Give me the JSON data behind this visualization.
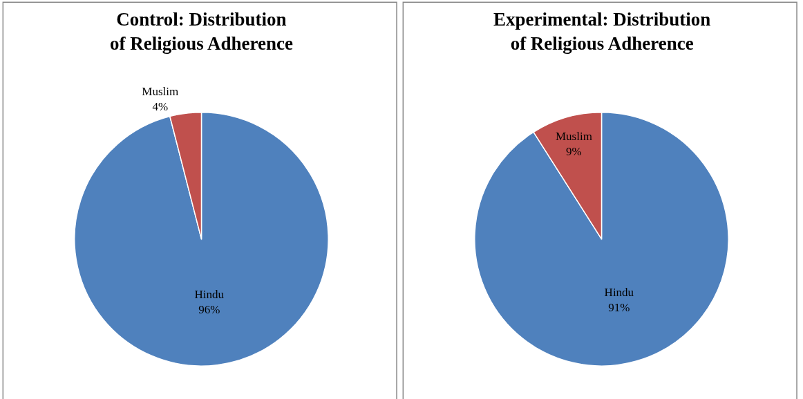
{
  "chart_data": [
    {
      "type": "pie",
      "title": "Control: Distribution of Religious Adherence",
      "categories": [
        "Hindu",
        "Muslim"
      ],
      "values": [
        96,
        4
      ],
      "value_labels": [
        "96%",
        "4%"
      ],
      "colors": [
        "#4f81bd",
        "#c0504d"
      ]
    },
    {
      "type": "pie",
      "title": "Experimental: Distribution of Religious Adherence",
      "categories": [
        "Hindu",
        "Muslim"
      ],
      "values": [
        91,
        9
      ],
      "value_labels": [
        "91%",
        "9%"
      ],
      "colors": [
        "#4f81bd",
        "#c0504d"
      ]
    }
  ]
}
